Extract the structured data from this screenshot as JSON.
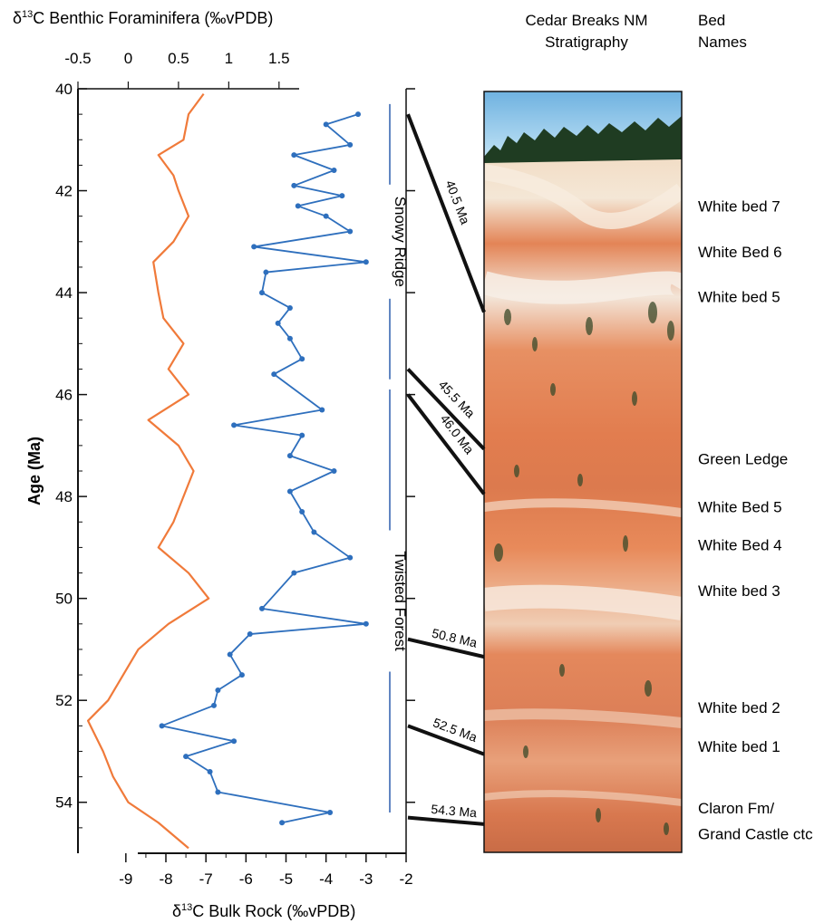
{
  "chart_data": {
    "type": "line",
    "title": "",
    "y_axis": {
      "label": "Age (Ma)",
      "range": [
        40,
        55
      ],
      "ticks": [
        40,
        42,
        44,
        46,
        48,
        50,
        52,
        54
      ],
      "inverted": true
    },
    "x_axis_top": {
      "label_prefix": "δ",
      "label_sup": "13",
      "label_suffix": "C Benthic Foraminifera (‰vPDB)",
      "range": [
        -0.5,
        1.7
      ],
      "ticks": [
        -0.5,
        0,
        0.5,
        1,
        1.5
      ]
    },
    "x_axis_bottom": {
      "label_prefix": "δ",
      "label_sup": "13",
      "label_suffix": "C Bulk Rock (‰vPDB)",
      "range": [
        -9.2,
        -2
      ],
      "ticks": [
        -9,
        -8,
        -7,
        -6,
        -5,
        -4,
        -3,
        -2
      ]
    },
    "series": [
      {
        "color": "#f07a3a",
        "axis": "top",
        "points": [
          [
            40.1,
            0.75
          ],
          [
            40.5,
            0.6
          ],
          [
            41.0,
            0.55
          ],
          [
            41.3,
            0.3
          ],
          [
            41.7,
            0.45
          ],
          [
            42.0,
            0.5
          ],
          [
            42.5,
            0.6
          ],
          [
            43.0,
            0.45
          ],
          [
            43.4,
            0.25
          ],
          [
            44.0,
            0.3
          ],
          [
            44.5,
            0.35
          ],
          [
            45.0,
            0.55
          ],
          [
            45.5,
            0.4
          ],
          [
            46.0,
            0.6
          ],
          [
            46.5,
            0.2
          ],
          [
            47.0,
            0.5
          ],
          [
            47.5,
            0.65
          ],
          [
            48.0,
            0.55
          ],
          [
            48.5,
            0.45
          ],
          [
            49.0,
            0.3
          ],
          [
            49.5,
            0.6
          ],
          [
            50.0,
            0.8
          ],
          [
            50.5,
            0.4
          ],
          [
            51.0,
            0.1
          ],
          [
            51.5,
            -0.05
          ],
          [
            52.0,
            -0.2
          ],
          [
            52.4,
            -0.4
          ],
          [
            53.0,
            -0.25
          ],
          [
            53.5,
            -0.15
          ],
          [
            54.0,
            0.0
          ],
          [
            54.4,
            0.3
          ],
          [
            54.9,
            0.6
          ]
        ]
      },
      {
        "color": "#2e6fbd",
        "axis": "bottom",
        "points": [
          [
            40.5,
            -3.2
          ],
          [
            40.7,
            -4.0
          ],
          [
            41.1,
            -3.4
          ],
          [
            41.3,
            -4.8
          ],
          [
            41.6,
            -3.8
          ],
          [
            41.9,
            -4.8
          ],
          [
            42.1,
            -3.6
          ],
          [
            42.3,
            -4.7
          ],
          [
            42.5,
            -4.0
          ],
          [
            42.8,
            -3.4
          ],
          [
            43.1,
            -5.8
          ],
          [
            43.4,
            -3.0
          ],
          [
            43.6,
            -5.5
          ],
          [
            44.0,
            -5.6
          ],
          [
            44.3,
            -4.9
          ],
          [
            44.6,
            -5.2
          ],
          [
            44.9,
            -4.9
          ],
          [
            45.3,
            -4.6
          ],
          [
            45.6,
            -5.3
          ],
          [
            46.3,
            -4.1
          ],
          [
            46.6,
            -6.3
          ],
          [
            46.8,
            -4.6
          ],
          [
            47.2,
            -4.9
          ],
          [
            47.5,
            -3.8
          ],
          [
            47.9,
            -4.9
          ],
          [
            48.3,
            -4.6
          ],
          [
            48.7,
            -4.3
          ],
          [
            49.2,
            -3.4
          ],
          [
            49.5,
            -4.8
          ],
          [
            50.2,
            -5.6
          ],
          [
            50.5,
            -3.0
          ],
          [
            50.7,
            -5.9
          ],
          [
            51.1,
            -6.4
          ],
          [
            51.5,
            -6.1
          ],
          [
            51.8,
            -6.7
          ],
          [
            52.1,
            -6.8
          ],
          [
            52.5,
            -8.1
          ],
          [
            52.8,
            -6.3
          ],
          [
            53.1,
            -7.5
          ],
          [
            53.4,
            -6.9
          ],
          [
            53.8,
            -6.7
          ],
          [
            54.2,
            -3.9
          ],
          [
            54.4,
            -5.1
          ]
        ]
      }
    ],
    "units": [
      {
        "name": "Snowy Ridge",
        "range": [
          40.3,
          45.7
        ]
      },
      {
        "name": "Twisted Forest",
        "range": [
          45.9,
          54.2
        ]
      }
    ],
    "tie_lines": [
      {
        "label": "40.5 Ma",
        "age": 40.5,
        "photo_y_frac": 0.29
      },
      {
        "label": "45.5 Ma",
        "age": 45.5,
        "photo_y_frac": 0.47
      },
      {
        "label": "46.0 Ma",
        "age": 46.0,
        "photo_y_frac": 0.529
      },
      {
        "label": "50.8 Ma",
        "age": 50.8,
        "photo_y_frac": 0.743
      },
      {
        "label": "52.5 Ma",
        "age": 52.5,
        "photo_y_frac": 0.871
      },
      {
        "label": "54.3 Ma",
        "age": 54.3,
        "photo_y_frac": 0.963
      }
    ],
    "stratigraphy": {
      "title": [
        "Cedar Breaks NM",
        "Stratigraphy"
      ],
      "bed_header": [
        "Bed",
        "Names"
      ],
      "beds": [
        {
          "name": "White bed 7",
          "y_frac": 0.165
        },
        {
          "name": "White Bed 6",
          "y_frac": 0.225
        },
        {
          "name": "White bed 5",
          "y_frac": 0.284
        },
        {
          "name": "Green Ledge",
          "y_frac": 0.497
        },
        {
          "name": "White Bed 5",
          "y_frac": 0.56
        },
        {
          "name": "White Bed 4",
          "y_frac": 0.61
        },
        {
          "name": "White bed 3",
          "y_frac": 0.67
        },
        {
          "name": "White bed 2",
          "y_frac": 0.824
        },
        {
          "name": "White bed 1",
          "y_frac": 0.875
        },
        {
          "name": "Claron Fm/",
          "y_frac": 0.956
        },
        {
          "name": "Grand Castle ctc",
          "y_frac": 0.99
        }
      ]
    }
  }
}
